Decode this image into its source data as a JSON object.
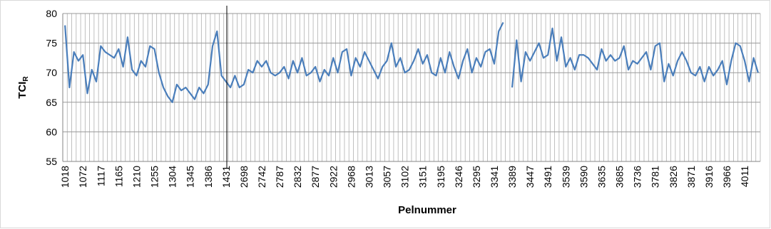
{
  "chart_data": {
    "type": "line",
    "x_label": "Pelnummer",
    "y_label": "TCI",
    "y_label_sub": "R",
    "categories": [
      "1018",
      null,
      null,
      null,
      "1072",
      null,
      null,
      null,
      "1117",
      null,
      null,
      null,
      "1165",
      null,
      null,
      null,
      "1210",
      null,
      null,
      null,
      "1255",
      null,
      null,
      null,
      "1304",
      null,
      null,
      null,
      "1345",
      null,
      null,
      null,
      "1386",
      null,
      null,
      null,
      "1431",
      null,
      null,
      null,
      "2698",
      null,
      null,
      null,
      "2742",
      null,
      null,
      null,
      "2787",
      null,
      null,
      null,
      "2832",
      null,
      null,
      null,
      "2877",
      null,
      null,
      null,
      "2922",
      null,
      null,
      null,
      "2968",
      null,
      null,
      null,
      "3013",
      null,
      null,
      null,
      "3057",
      null,
      null,
      null,
      "3102",
      null,
      null,
      null,
      "3151",
      null,
      null,
      null,
      "3195",
      null,
      null,
      null,
      "3246",
      null,
      null,
      null,
      "3295",
      null,
      null,
      null,
      "3341",
      null,
      null,
      null,
      "3389",
      null,
      null,
      null,
      "3447",
      null,
      null,
      null,
      "3491",
      null,
      null,
      null,
      "3539",
      null,
      null,
      null,
      "3590",
      null,
      null,
      null,
      "3635",
      null,
      null,
      null,
      "3685",
      null,
      null,
      null,
      "3736",
      null,
      null,
      null,
      "3781",
      null,
      null,
      null,
      "3826",
      null,
      null,
      null,
      "3871",
      null,
      null,
      null,
      "3916",
      null,
      null,
      null,
      "3966",
      null,
      null,
      null,
      "4011",
      null,
      null,
      null
    ],
    "series": [
      {
        "name": "TCIR",
        "color": "#4a7ebb",
        "values": [
          78,
          67.5,
          73.5,
          72,
          73,
          66.5,
          70.5,
          68.5,
          74.5,
          73.5,
          73,
          72.5,
          74,
          71,
          76,
          70.5,
          69.5,
          72,
          71,
          74.5,
          74,
          70,
          67.5,
          66,
          65,
          68,
          67,
          67.5,
          66.5,
          65.5,
          67.5,
          66.5,
          68,
          74.5,
          77,
          69.5,
          68.5,
          67.5,
          69.5,
          67.5,
          68,
          70.5,
          70,
          72,
          71,
          72,
          70,
          69.5,
          70,
          71,
          69,
          72,
          70,
          72.5,
          69.5,
          70,
          71,
          68.5,
          70.5,
          69.5,
          72.5,
          70,
          73.5,
          74,
          69.5,
          72.5,
          71,
          73.5,
          72,
          70.5,
          69,
          71,
          72,
          75,
          71,
          72.5,
          70,
          70.5,
          72,
          74,
          71.5,
          73,
          70,
          69.5,
          72.5,
          70,
          73.5,
          71,
          69,
          72,
          74,
          70,
          72.5,
          71,
          73.5,
          74,
          71.5,
          77,
          78.5,
          null,
          67.5,
          75.5,
          68.5,
          73.5,
          72,
          73.5,
          75,
          72.5,
          73,
          77.5,
          72,
          76,
          71,
          72.5,
          70.5,
          73,
          73,
          72.5,
          71.5,
          70.5,
          74,
          72,
          73,
          72,
          72.5,
          74.5,
          70.5,
          72,
          71.5,
          72.5,
          73.5,
          70.5,
          74.5,
          75,
          68.5,
          71.5,
          69.5,
          72,
          73.5,
          72,
          70,
          69.5,
          71,
          68.5,
          71,
          69.5,
          70.5,
          72,
          68,
          72,
          75,
          74.5,
          72,
          68.5,
          72.5,
          70
        ]
      }
    ],
    "ylim": [
      55,
      80
    ],
    "yticks": [
      55,
      60,
      65,
      70,
      75,
      80
    ],
    "grid": true
  }
}
